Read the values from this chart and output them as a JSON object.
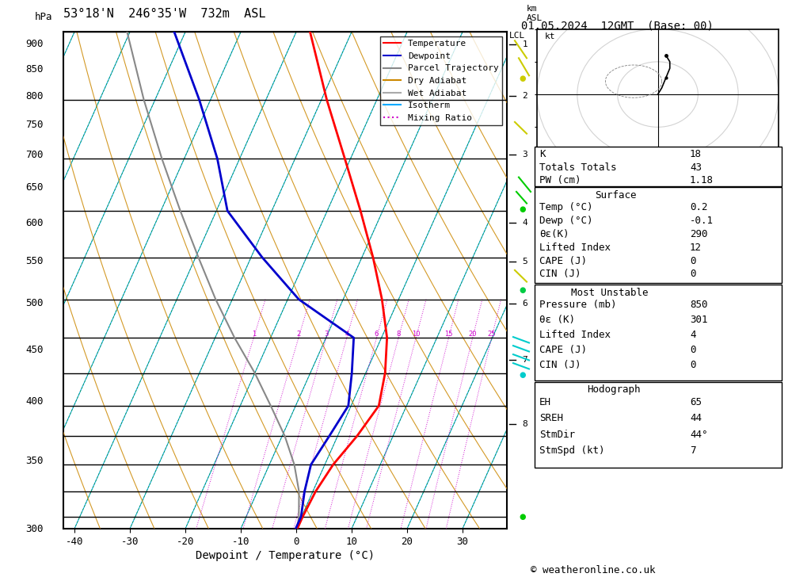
{
  "title_left": "53°18'N  246°35'W  732m  ASL",
  "title_right": "01.05.2024  12GMT  (Base: 00)",
  "xlabel": "Dewpoint / Temperature (°C)",
  "copyright": "© weatheronline.co.uk",
  "pressure_levels": [
    300,
    350,
    400,
    450,
    500,
    550,
    600,
    650,
    700,
    750,
    800,
    850,
    900
  ],
  "pressure_min": 300,
  "pressure_max": 925,
  "temp_min": -42,
  "temp_max": 38,
  "skew_factor": 40.0,
  "temp_profile_p": [
    300,
    350,
    400,
    450,
    500,
    550,
    600,
    650,
    700,
    750,
    800,
    850,
    900,
    925
  ],
  "temp_profile_t": [
    -37.5,
    -29.0,
    -21.0,
    -14.0,
    -8.0,
    -3.0,
    1.0,
    3.5,
    5.0,
    3.5,
    1.5,
    0.5,
    0.2,
    0.2
  ],
  "dewp_profile_p": [
    300,
    350,
    400,
    450,
    500,
    550,
    600,
    650,
    700,
    750,
    800,
    850,
    900,
    925
  ],
  "dewp_profile_t": [
    -62,
    -52,
    -44,
    -38,
    -28,
    -18,
    -5,
    -2.5,
    -0.5,
    -1.5,
    -2.5,
    -1.5,
    -0.1,
    -0.1
  ],
  "parcel_profile_p": [
    925,
    900,
    850,
    800,
    750,
    700,
    650,
    600,
    550,
    500,
    450,
    400,
    350,
    300
  ],
  "parcel_profile_t": [
    0.2,
    -0.5,
    -2.5,
    -5.5,
    -9.5,
    -14.5,
    -20.0,
    -26.5,
    -33.0,
    -39.5,
    -46.5,
    -54.0,
    -62.0,
    -70.5
  ],
  "km_asl_values": [
    1,
    2,
    3,
    4,
    5,
    6,
    7,
    8
  ],
  "km_asl_pressures": [
    900,
    800,
    700,
    600,
    550,
    500,
    440,
    380
  ],
  "mixing_ratio_lines": [
    1,
    2,
    3,
    4,
    6,
    8,
    10,
    15,
    20,
    25
  ],
  "bg_color": "#ffffff",
  "temp_color": "#ff0000",
  "dewp_color": "#0000cc",
  "parcel_color": "#888888",
  "dry_adiabat_color": "#cc8800",
  "wet_adiabat_color": "#aaaaaa",
  "isotherm_color": "#00aaff",
  "mixing_ratio_color": "#cc00cc",
  "green_line_color": "#008800",
  "stats_K": "18",
  "stats_TT": "43",
  "stats_PW": "1.18",
  "surf_temp": "0.2",
  "surf_dewp": "-0.1",
  "surf_theta_e": "290",
  "surf_li": "12",
  "surf_cape": "0",
  "surf_cin": "0",
  "mu_pressure": "850",
  "mu_theta_e": "301",
  "mu_li": "4",
  "mu_cape": "0",
  "mu_cin": "0",
  "hodo_EH": "65",
  "hodo_SREH": "44",
  "hodo_StmDir": "44°",
  "hodo_StmSpd": "7"
}
